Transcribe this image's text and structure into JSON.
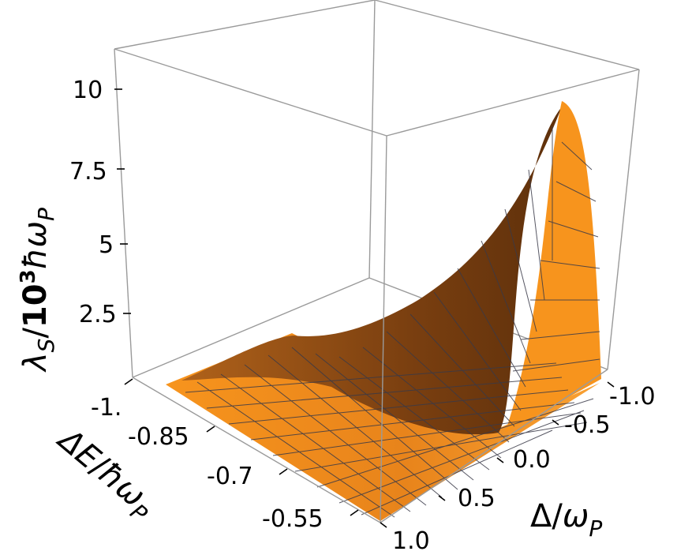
{
  "chart_data": {
    "type": "surface3d",
    "title": "",
    "x_axis": {
      "label_parts": [
        "Δ",
        "/",
        "ω",
        "P"
      ],
      "ticks": [
        "-1.0",
        "-0.5",
        "0.0",
        "0.5",
        "1.0"
      ],
      "range": [
        -1.0,
        1.0
      ]
    },
    "y_axis": {
      "label_parts": [
        "ΔE",
        "/",
        "ħω",
        "P"
      ],
      "ticks": [
        "-1.",
        "-0.85",
        "-0.7",
        "-0.55"
      ],
      "range": [
        -1.0,
        -0.5
      ]
    },
    "z_axis": {
      "label_parts": [
        "λ",
        "S",
        "/",
        "10",
        "3",
        "ħω",
        "P"
      ],
      "ticks": [
        "2.5",
        "5",
        "7.5",
        "10"
      ],
      "range": [
        0,
        11
      ]
    },
    "surface": {
      "description_points": [
        {
          "x": -1.0,
          "y": -0.5,
          "z": 10.0
        },
        {
          "x": -1.0,
          "y": -1.0,
          "z": 1.5
        },
        {
          "x": 0.0,
          "y": -0.5,
          "z": 0.3
        },
        {
          "x": 1.0,
          "y": -1.0,
          "z": 0.0
        },
        {
          "x": 1.0,
          "y": -0.5,
          "z": 0.0
        }
      ]
    },
    "colors": {
      "surface": "#f7941d",
      "surface_dark": "#8a4a10",
      "mesh": "#3a3a48",
      "box": "#9a9a9a"
    },
    "grid": false,
    "mesh": true
  }
}
